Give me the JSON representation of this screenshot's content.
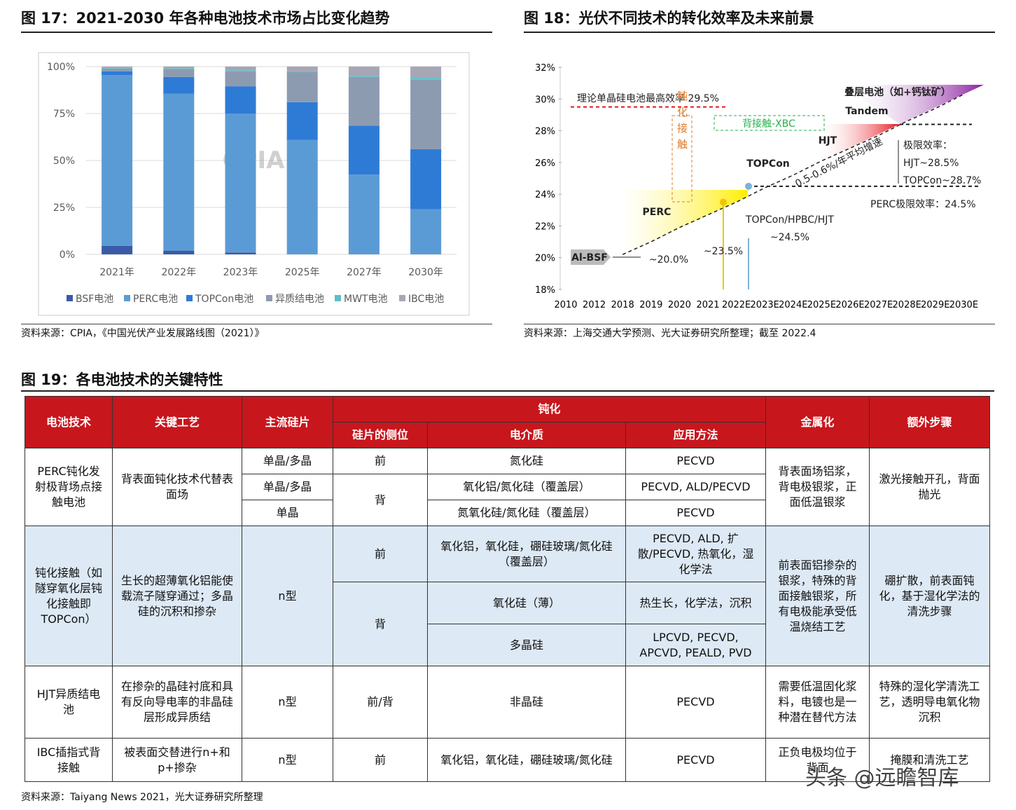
{
  "figures": [
    {
      "title": "图 17：2021-2030 年各种电池技术市场占比变化趋势",
      "source": "资料来源：CPIA，《中国光伏产业发展路线图（2021）》"
    },
    {
      "title": "图 18：光伏不同技术的转化效率及未来前景",
      "source": "资料来源：上海交通大学预测、光大证券研究所整理；截至 2022.4"
    },
    {
      "title": "图 19：各电池技术的关键特性",
      "source": "资料来源：Taiyang News 2021，光大证券研究所整理"
    }
  ],
  "chart_data": [
    {
      "type": "bar",
      "stacked": true,
      "watermark": "CPIA",
      "categories": [
        "2021年",
        "2022年",
        "2023年",
        "2025年",
        "2027年",
        "2030年"
      ],
      "series": [
        {
          "name": "BSF电池",
          "color": "#3a5ba8",
          "values": [
            4.5,
            2,
            1,
            0,
            0,
            0
          ]
        },
        {
          "name": "PERC电池",
          "color": "#5b9bd5",
          "values": [
            91,
            83.5,
            74,
            61,
            42.5,
            24
          ]
        },
        {
          "name": "TOPCon电池",
          "color": "#2e7bd6",
          "values": [
            2,
            9,
            14.5,
            20,
            26,
            32
          ]
        },
        {
          "name": "异质结电池",
          "color": "#8c9bb0",
          "values": [
            1.5,
            4,
            8,
            16,
            26,
            37
          ]
        },
        {
          "name": "MWT电池",
          "color": "#5bc0c8",
          "values": [
            0.5,
            0.5,
            0.5,
            0.5,
            0.5,
            1
          ]
        },
        {
          "name": "IBC电池",
          "color": "#a6a6b5",
          "values": [
            0.5,
            1,
            2,
            2.5,
            5,
            6
          ]
        }
      ],
      "ylim": [
        0,
        100
      ],
      "yticks": [
        {
          "value": 0,
          "label": "0%"
        },
        {
          "value": 25,
          "label": "25%"
        },
        {
          "value": 50,
          "label": "50%"
        },
        {
          "value": 75,
          "label": "75%"
        },
        {
          "value": 100,
          "label": "100%"
        }
      ],
      "grid": true,
      "legend": "bottom"
    },
    {
      "type": "line",
      "categories": [
        "2010",
        "2012",
        "2018",
        "2019",
        "2020",
        "2021",
        "2022E",
        "2023E",
        "2024E",
        "2025E",
        "2026E",
        "2027E",
        "2028E",
        "2029E",
        "2030E"
      ],
      "series": [
        {
          "color": "#222",
          "dashed": true,
          "values": [
            null,
            null,
            20.2,
            21.0,
            21.9,
            22.7,
            23.5,
            24.4,
            25.2,
            26.1,
            26.9,
            27.7,
            28.6,
            29.4,
            30.3
          ]
        }
      ],
      "ylim": [
        18,
        32
      ],
      "yticks": [
        {
          "value": 18,
          "label": "18%"
        },
        {
          "value": 20,
          "label": "20%"
        },
        {
          "value": 22,
          "label": "22%"
        },
        {
          "value": 24,
          "label": "24%"
        },
        {
          "value": 26,
          "label": "26%"
        },
        {
          "value": 28,
          "label": "28%"
        },
        {
          "value": 30,
          "label": "30%"
        },
        {
          "value": 32,
          "label": "32%"
        }
      ],
      "reference_lines": [
        29.5,
        28.4,
        24.5
      ],
      "markers": [
        23.5,
        24.5
      ],
      "annotations": [
        "理论单晶硅电池最高效率 29.5%",
        "钝化接触",
        "背接触-XBC",
        "叠层电池（如+钙钛矿）",
        "Tandem",
        "HJT",
        "极限效率：",
        "HJT~28.5%",
        "TOPCon~28.7%",
        "TOPCon",
        "0.5-0.6%/年平均增速",
        "PERC极限效率：24.5%",
        "PERC",
        "TOPCon/HPBC/HJT",
        "~24.5%",
        "~23.5%",
        "Al-BSF",
        "~20.0%"
      ]
    }
  ],
  "table": {
    "header": [
      [
        "电池技术",
        "关键工艺",
        "主流硅片",
        "钝化",
        "金属化",
        "额外步骤"
      ],
      [
        "硅片的侧位",
        "电介质",
        "应用方法"
      ]
    ],
    "rows": [
      [
        "PERC钝化发射极背场点接触电池",
        "背表面钝化技术代替表面场",
        "单晶/多晶",
        "前",
        "氮化硅",
        "PECVD",
        "背表面场铝浆，背电极银浆，正面低温银浆",
        "激光接触开孔，背面抛光"
      ],
      [
        "单晶/多晶",
        "背",
        "氧化铝/氮化硅（覆盖层）",
        "PECVD, ALD/PECVD"
      ],
      [
        "单晶",
        "氮氧化硅/氮化硅（覆盖层）",
        "PECVD"
      ],
      [
        "钝化接触（如隧穿氧化层钝化接触即TOPCon）",
        "生长的超薄氧化铝能使载流子隧穿通过；多晶硅的沉积和掺杂",
        "n型",
        "前",
        "氧化铝，氧化硅，硼硅玻璃/氮化硅（覆盖层）",
        "PECVD, ALD, 扩散/PECVD, 热氧化，湿化学法",
        "前表面铝掺杂的银浆，特殊的背面接触银浆，所有电极能承受低温烧结工艺",
        "硼扩散，前表面钝化，基于湿化学法的清洗步骤"
      ],
      [
        "背",
        "氧化硅（薄）",
        "热生长，化学法，沉积"
      ],
      [
        "多晶硅",
        "LPCVD, PECVD, APCVD, PEALD, PVD"
      ],
      [
        "HJT异质结电池",
        "在掺杂的晶硅衬底和具有反向导电率的非晶硅层形成异质结",
        "n型",
        "前/背",
        "非晶硅",
        "PECVD",
        "需要低温固化浆料，电镀也是一种潜在替代方法",
        "特殊的湿化学清洗工艺，透明导电氧化物沉积"
      ],
      [
        "IBC插指式背接触",
        "被表面交替进行n+和p+掺杂",
        "n型",
        "前",
        "氧化铝，氧化硅，硼硅玻璃/氮化硅",
        "PECVD",
        "正负电极均位于背面",
        "掩膜和清洗工艺"
      ]
    ]
  },
  "watermark": "头条 @远瞻智库"
}
